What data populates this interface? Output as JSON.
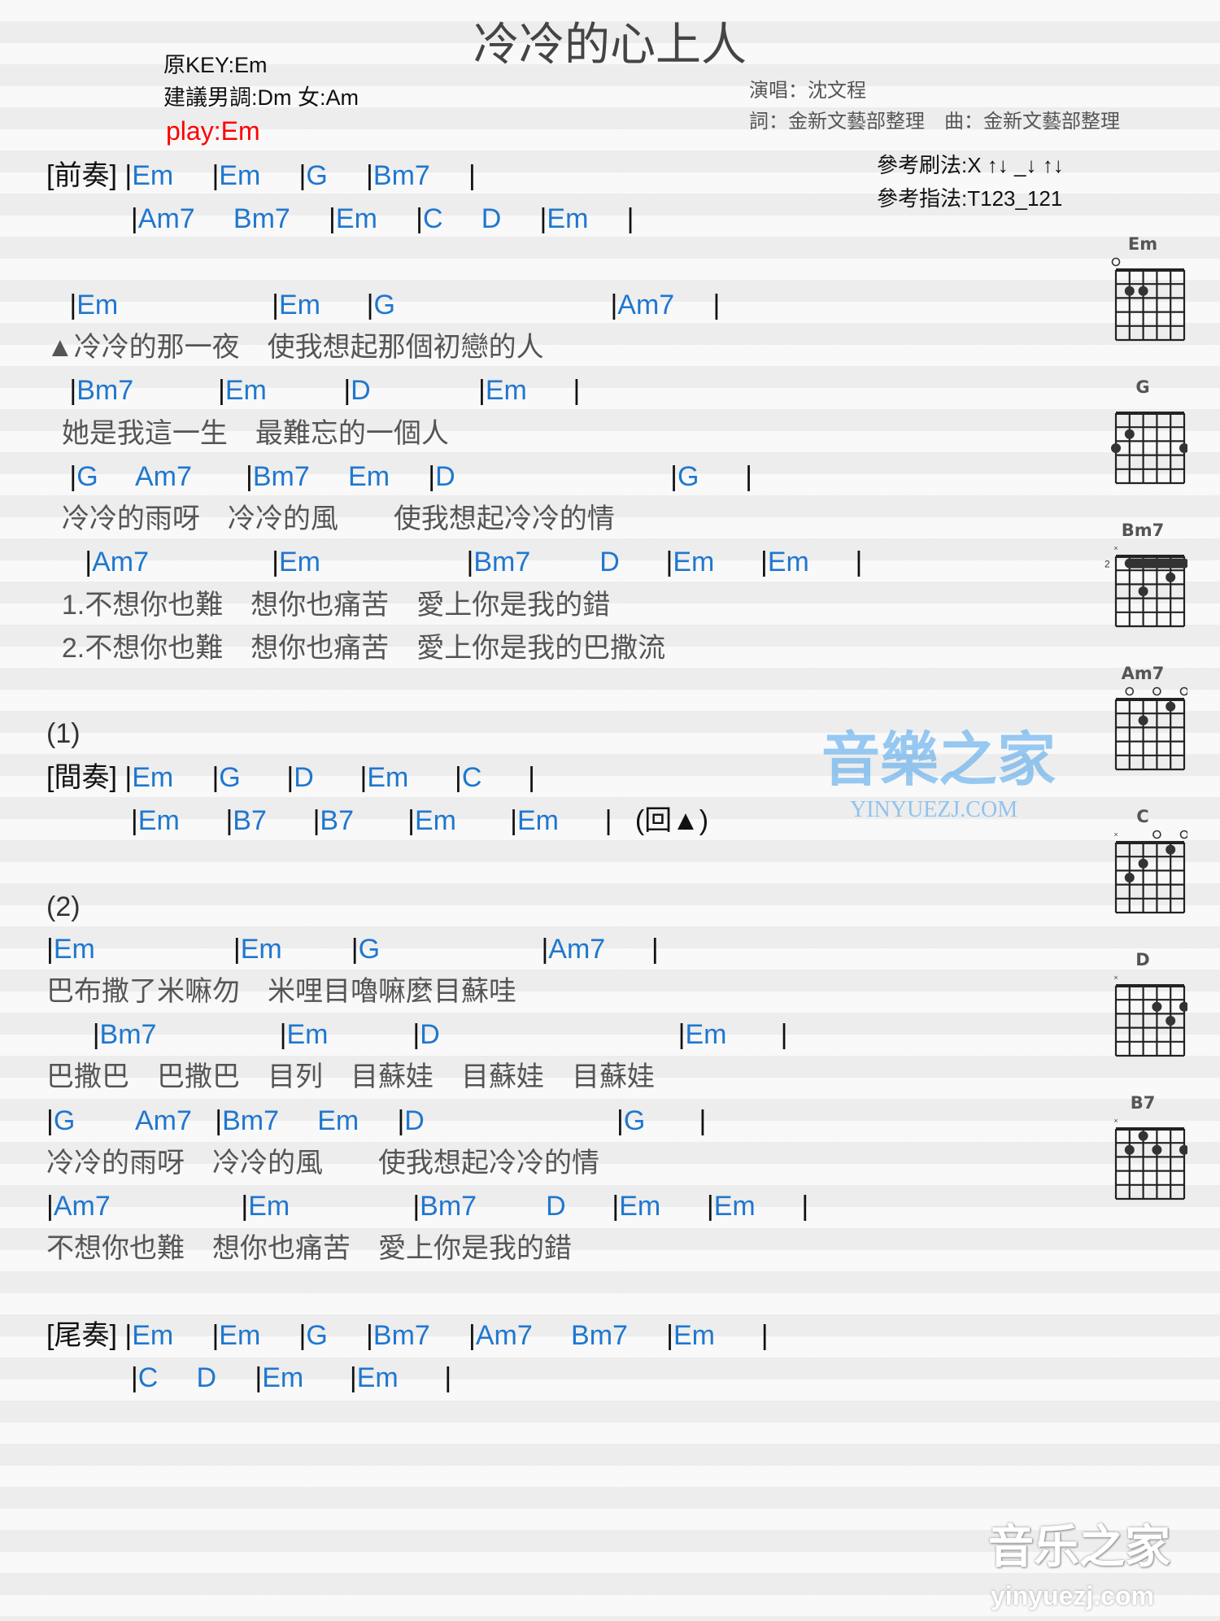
{
  "title": "冷冷的心上人",
  "meta": {
    "original_key": "原KEY:Em",
    "suggested_key": "建議男調:Dm 女:Am",
    "play_key": "play:Em"
  },
  "credits": {
    "singer": "演唱：沈文程",
    "lyrics_music": "詞：金新文藝部整理　曲：金新文藝部整理"
  },
  "reference": {
    "strum": "參考刷法:X ↑↓ _↓ ↑↓",
    "finger": "參考指法:T123_121"
  },
  "colors": {
    "chord": "#1f77cf",
    "lyric": "#555555",
    "play_key": "#ff0000"
  },
  "lines": [
    {
      "type": "chord",
      "text": "[前奏] |Em     |Em     |G     |Bm7     |"
    },
    {
      "type": "chord",
      "text": "           |Am7     Bm7     |Em     |C     D     |Em     |"
    },
    {
      "type": "chord",
      "text": "   |Em                    |Em      |G                            |Am7     |"
    },
    {
      "type": "lyric",
      "text": "▲冷冷的那一夜　使我想起那個初戀的人"
    },
    {
      "type": "chord",
      "text": "   |Bm7           |Em          |D              |Em      |"
    },
    {
      "type": "lyric",
      "text": "  她是我這一生　最難忘的一個人"
    },
    {
      "type": "chord",
      "text": "   |G     Am7       |Bm7     Em     |D                            |G      |"
    },
    {
      "type": "lyric",
      "text": "  冷冷的雨呀　冷冷的風　　使我想起冷冷的情"
    },
    {
      "type": "chord",
      "text": "     |Am7                |Em                   |Bm7         D      |Em      |Em      |"
    },
    {
      "type": "lyric",
      "text": "  1.不想你也難　想你也痛苦　愛上你是我的錯"
    },
    {
      "type": "lyric",
      "text": "  2.不想你也難　想你也痛苦　愛上你是我的巴撒流"
    },
    {
      "type": "label",
      "text": "(1)"
    },
    {
      "type": "chord",
      "text": "[間奏] |Em     |G      |D      |Em      |C      |"
    },
    {
      "type": "chord",
      "text": "           |Em      |B7      |B7       |Em       |Em      |   (回▲)"
    },
    {
      "type": "label",
      "text": "(2)"
    },
    {
      "type": "chord",
      "text": "|Em                  |Em         |G                     |Am7      |"
    },
    {
      "type": "lyric",
      "text": "巴布撒了米嘛勿　米哩目嚕嘛麼目蘇哇"
    },
    {
      "type": "chord",
      "text": "      |Bm7                |Em           |D                               |Em       |"
    },
    {
      "type": "lyric",
      "text": "巴撒巴　巴撒巴　目列　目蘇娃　目蘇娃　目蘇娃"
    },
    {
      "type": "chord",
      "text": "|G        Am7   |Bm7     Em     |D                         |G       |"
    },
    {
      "type": "lyric",
      "text": "冷冷的雨呀　冷冷的風　　使我想起冷冷的情"
    },
    {
      "type": "chord",
      "text": "|Am7                 |Em                |Bm7         D      |Em      |Em      |"
    },
    {
      "type": "lyric",
      "text": "不想你也難　想你也痛苦　愛上你是我的錯"
    },
    {
      "type": "chord",
      "text": "[尾奏] |Em     |Em     |G     |Bm7     |Am7     Bm7     |Em      |"
    },
    {
      "type": "chord",
      "text": "           |C     D     |Em      |Em      |"
    }
  ],
  "chord_diagrams": [
    {
      "name": "Em",
      "base_fret": "",
      "markers": [
        "o",
        "",
        "",
        "",
        "",
        ""
      ],
      "dots": [
        [
          1,
          2
        ],
        [
          2,
          2
        ]
      ],
      "barre": null
    },
    {
      "name": "G",
      "base_fret": "",
      "markers": [
        "",
        "",
        "",
        "",
        "",
        ""
      ],
      "dots": [
        [
          1,
          2
        ],
        [
          0,
          3
        ],
        [
          5,
          3
        ]
      ],
      "barre": null
    },
    {
      "name": "Bm7",
      "base_fret": "2",
      "markers": [
        "x",
        "",
        "",
        "",
        "",
        ""
      ],
      "dots": [
        [
          4,
          2
        ],
        [
          2,
          3
        ]
      ],
      "barre": [
        1,
        5,
        1
      ]
    },
    {
      "name": "Am7",
      "base_fret": "",
      "markers": [
        "",
        "o",
        "",
        "o",
        "",
        "o"
      ],
      "dots": [
        [
          2,
          2
        ],
        [
          4,
          1
        ]
      ],
      "barre": null
    },
    {
      "name": "C",
      "base_fret": "",
      "markers": [
        "x",
        "",
        "",
        "o",
        "",
        "o"
      ],
      "dots": [
        [
          1,
          3
        ],
        [
          2,
          2
        ],
        [
          4,
          1
        ]
      ],
      "barre": null
    },
    {
      "name": "D",
      "base_fret": "",
      "markers": [
        "x",
        "",
        "",
        "",
        "",
        ""
      ],
      "dots": [
        [
          3,
          2
        ],
        [
          5,
          2
        ],
        [
          4,
          3
        ]
      ],
      "barre": null
    },
    {
      "name": "B7",
      "base_fret": "",
      "markers": [
        "x",
        "",
        "",
        "",
        "",
        ""
      ],
      "dots": [
        [
          1,
          2
        ],
        [
          2,
          1
        ],
        [
          3,
          2
        ],
        [
          5,
          2
        ]
      ],
      "barre": null
    }
  ],
  "watermark": {
    "text": "音樂之家",
    "sub": "YINYUEZJ.COM"
  },
  "logo": {
    "text": "音乐之家",
    "sub": "yinyuezj.com"
  }
}
